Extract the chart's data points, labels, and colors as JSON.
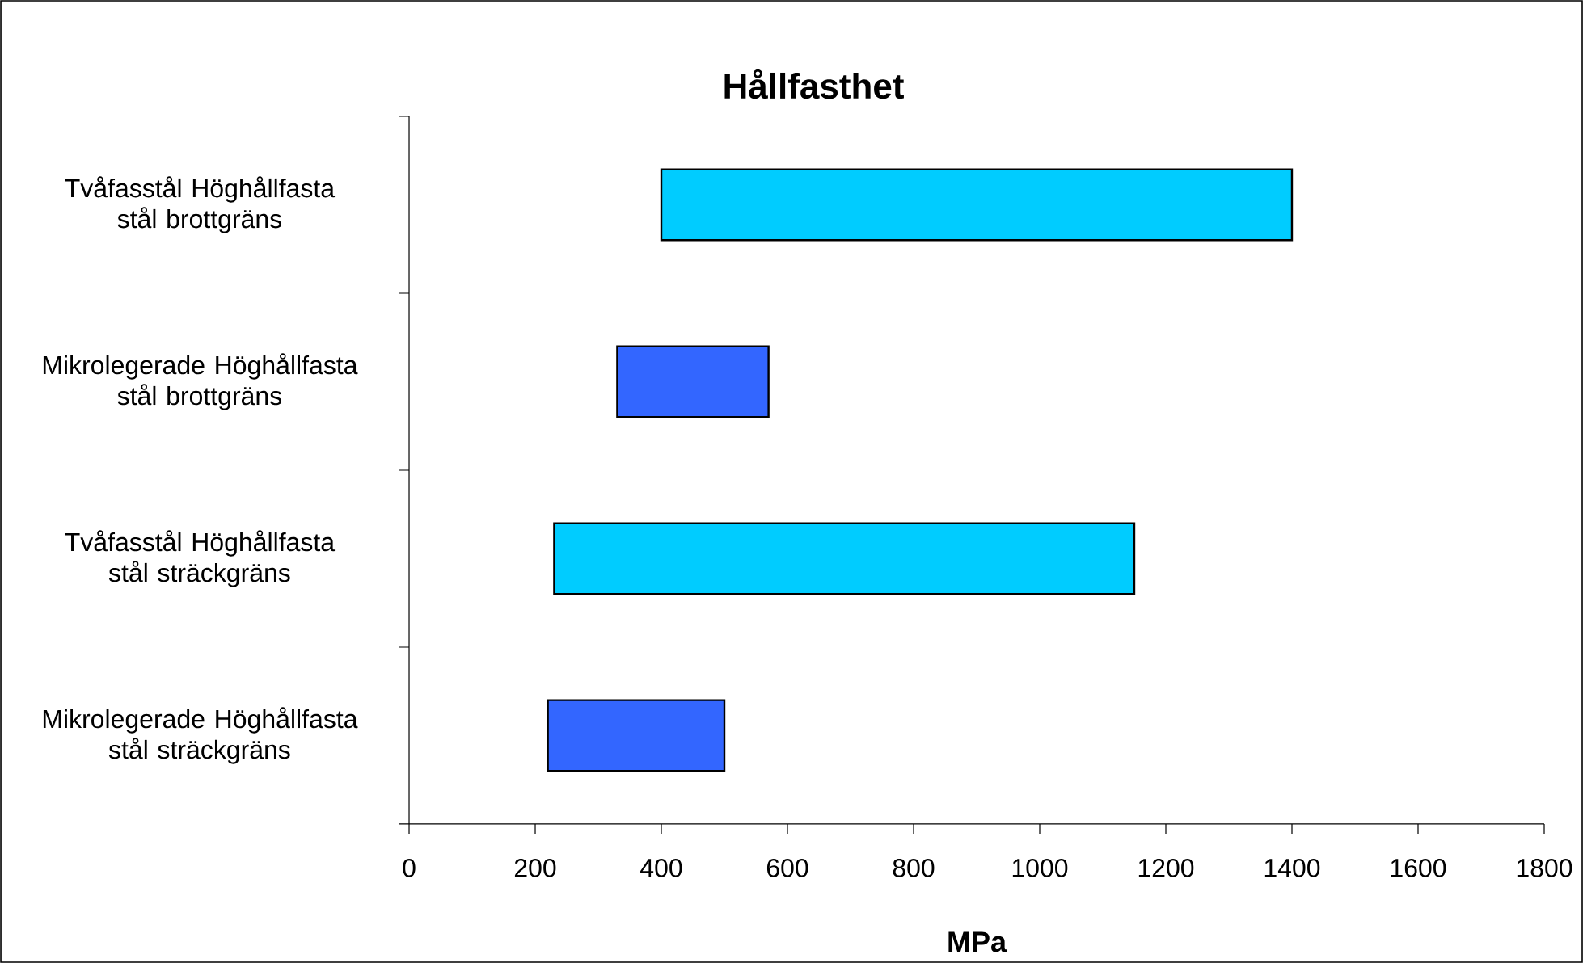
{
  "chart_data": {
    "type": "bar",
    "orientation": "horizontal",
    "title": "Hållfasthet",
    "xlabel": "MPa",
    "categories": [
      "Tvåfasstål Höghållfasta stål brottgräns",
      "Mikrolegerade Höghållfasta stål brottgräns",
      "Tvåfasstål Höghållfasta stål sträckgräns",
      "Mikrolegerade Höghållfasta stål sträckgräns"
    ],
    "base": [
      400,
      330,
      230,
      220
    ],
    "values": [
      1000,
      240,
      920,
      280
    ],
    "colors": [
      "#00ccff",
      "#3366ff",
      "#00ccff",
      "#3366ff"
    ],
    "xlim": [
      0,
      1800
    ],
    "xticks": [
      0,
      200,
      400,
      600,
      800,
      1000,
      1200,
      1400,
      1600,
      1800
    ]
  }
}
